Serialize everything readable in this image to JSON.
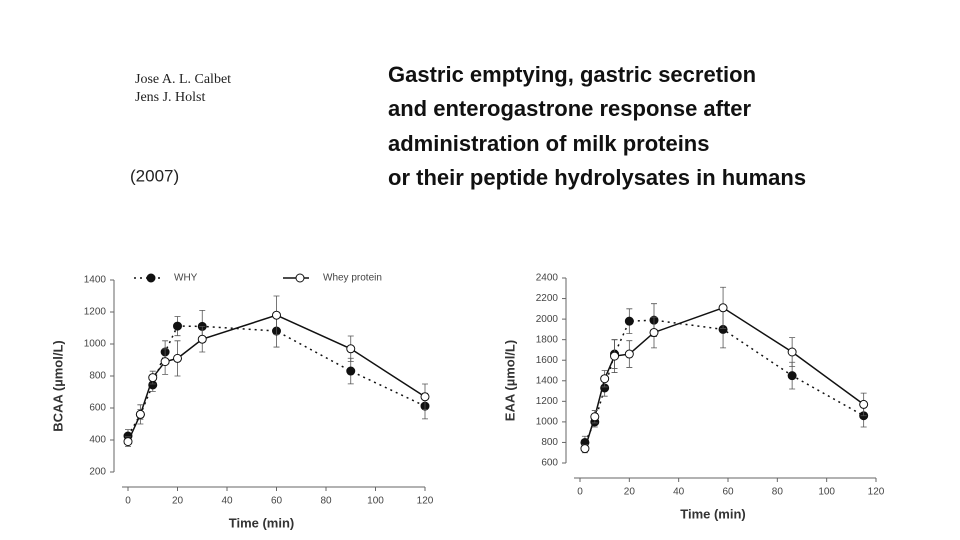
{
  "authors": [
    "Jose A. L. Calbet",
    "Jens J. Holst"
  ],
  "year": "(2007)",
  "title": [
    "Gastric emptying, gastric secretion",
    "and enterogastrone response after",
    "administration of milk proteins",
    "or their peptide hydrolysates in humans"
  ],
  "chart_data": [
    {
      "type": "line",
      "x_label": "Time  (min)",
      "y_label": "BCAA  (µmol/L)",
      "x": [
        0,
        5,
        10,
        15,
        20,
        30,
        60,
        90,
        120
      ],
      "series": [
        {
          "name": "WHY",
          "color": "#111111",
          "line_style": "dotted",
          "marker": "filled",
          "values": [
            425,
            560,
            744,
            950,
            1112,
            1110,
            1081,
            831,
            612
          ],
          "errors": [
            40,
            30,
            40,
            70,
            60,
            100,
            100,
            80,
            80
          ]
        },
        {
          "name": "Whey  protein",
          "color": "#111111",
          "line_style": "solid",
          "marker": "open",
          "values": [
            390,
            560,
            790,
            890,
            910,
            1030,
            1180,
            970,
            670
          ],
          "errors": [
            30,
            60,
            40,
            80,
            110,
            80,
            120,
            80,
            80
          ]
        }
      ],
      "xlim": [
        0,
        120
      ],
      "xticks": [
        0,
        20,
        40,
        60,
        80,
        100,
        120
      ],
      "ylim": [
        200,
        1400
      ],
      "yticks": [
        200,
        400,
        600,
        800,
        1000,
        1200,
        1400
      ],
      "legend": "top"
    },
    {
      "type": "line",
      "x_label": "Time  (min)",
      "y_label": "EAA  (µmol/L)",
      "x": [
        2,
        6,
        10,
        14,
        20,
        30,
        58,
        86,
        115
      ],
      "series": [
        {
          "color": "#111111",
          "line_style": "dotted",
          "marker": "filled",
          "values": [
            800,
            1000,
            1330,
            1660,
            1980,
            1990,
            1900,
            1450,
            1060
          ],
          "errors": [
            60,
            50,
            80,
            140,
            120,
            160,
            180,
            130,
            110
          ]
        },
        {
          "color": "#111111",
          "line_style": "solid",
          "marker": "open",
          "values": [
            740,
            1050,
            1420,
            1640,
            1660,
            1870,
            2110,
            1680,
            1170
          ],
          "errors": [
            40,
            60,
            80,
            160,
            130,
            150,
            200,
            140,
            110
          ]
        }
      ],
      "xlim": [
        0,
        120
      ],
      "xticks": [
        0,
        20,
        40,
        60,
        80,
        100,
        120
      ],
      "ylim": [
        600,
        2400
      ],
      "yticks": [
        600,
        800,
        1000,
        1200,
        1400,
        1600,
        1800,
        2000,
        2200,
        2400
      ]
    }
  ]
}
